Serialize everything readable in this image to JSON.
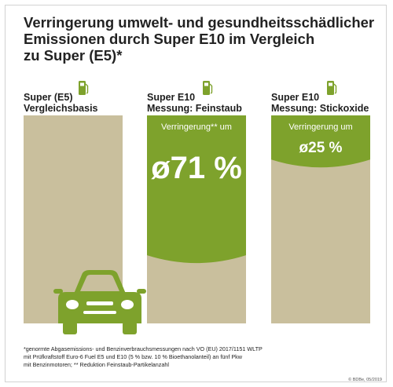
{
  "title_lines": [
    "Verringerung umwelt- und gesundheitsschädlicher",
    "Emissionen durch Super E10 im Vergleich",
    "zu Super (E5)*"
  ],
  "colors": {
    "base": "#c9bf9d",
    "reduction": "#7ea22c",
    "icon": "#7ea22c",
    "text": "#1e1e1e"
  },
  "chart_data": {
    "type": "bar",
    "categories": [
      {
        "line1": "Super (E5)",
        "line2": "Vergleichsbasis"
      },
      {
        "line1": "Super E10",
        "line2": "Messung: Feinstaub"
      },
      {
        "line1": "Super E10",
        "line2": "Messung: Stickoxide"
      }
    ],
    "baseline": 100,
    "values": [
      0,
      71,
      25
    ],
    "reduction_labels": [
      "",
      "Verringerung** um",
      "Verringerung um"
    ],
    "value_labels": [
      "",
      "ø71 %",
      "ø25 %"
    ],
    "ylim": [
      0,
      100
    ],
    "icons": [
      "fuel-pump-icon",
      "fuel-pump-icon",
      "fuel-pump-icon",
      "car-icon"
    ]
  },
  "footnote_lines": [
    "*genormte Abgasemissions- und Benzinverbrauchsmessungen nach VO (EU) 2017/1151 WLTP",
    "mit Prüfkraftstoff Euro-6 Fuel E5 und E10 (5 % bzw. 10 % Bioethanolanteil) an fünf Pkw",
    "mit Benzinmotoren; ** Reduktion Feinstaub-Partikelanzahl"
  ],
  "copyright": "© BDBe, 05/2019"
}
